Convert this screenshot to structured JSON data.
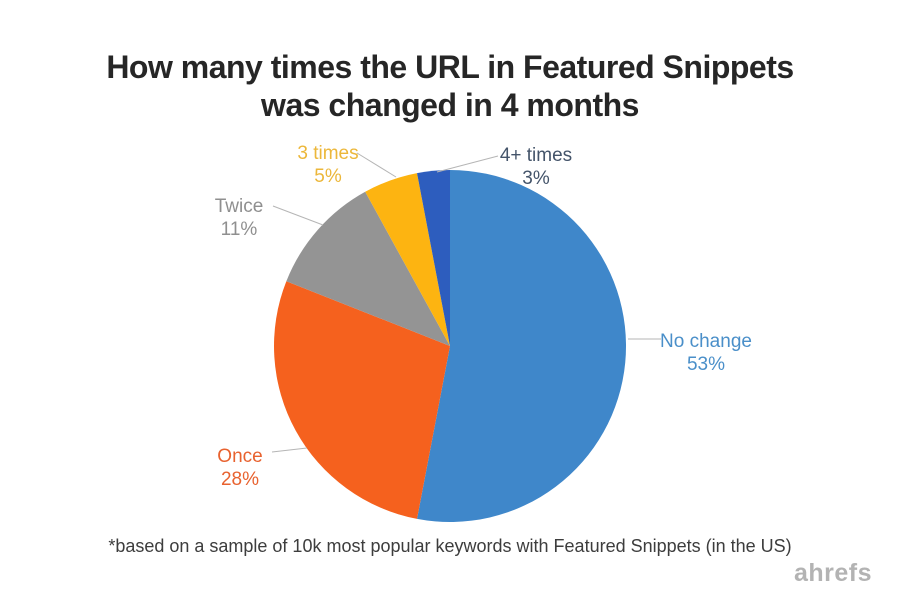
{
  "title_line1": "How many times the URL in Featured Snippets",
  "title_line2": "was changed in 4 months",
  "footnote": "*based on a sample of 10k most popular keywords with Featured Snippets (in the US)",
  "brand": "ahrefs",
  "chart_data": {
    "type": "pie",
    "title": "How many times the URL in Featured Snippets was changed in 4 months",
    "start_angle_deg": 0,
    "direction": "clockwise",
    "legend_position": "none (direct labels with leader lines)",
    "slices": [
      {
        "label": "No change",
        "value": 53,
        "display": "53%",
        "color": "#3F87CA",
        "label_color": "#4A8FC9"
      },
      {
        "label": "Once",
        "value": 28,
        "display": "28%",
        "color": "#F5611E",
        "label_color": "#E8622F"
      },
      {
        "label": "Twice",
        "value": 11,
        "display": "11%",
        "color": "#949494",
        "label_color": "#8F8F8F"
      },
      {
        "label": "3 times",
        "value": 5,
        "display": "5%",
        "color": "#FDB411",
        "label_color": "#ECB73A"
      },
      {
        "label": "4+ times",
        "value": 3,
        "display": "3%",
        "color": "#2D5DBE",
        "label_color": "#44546A"
      }
    ]
  }
}
